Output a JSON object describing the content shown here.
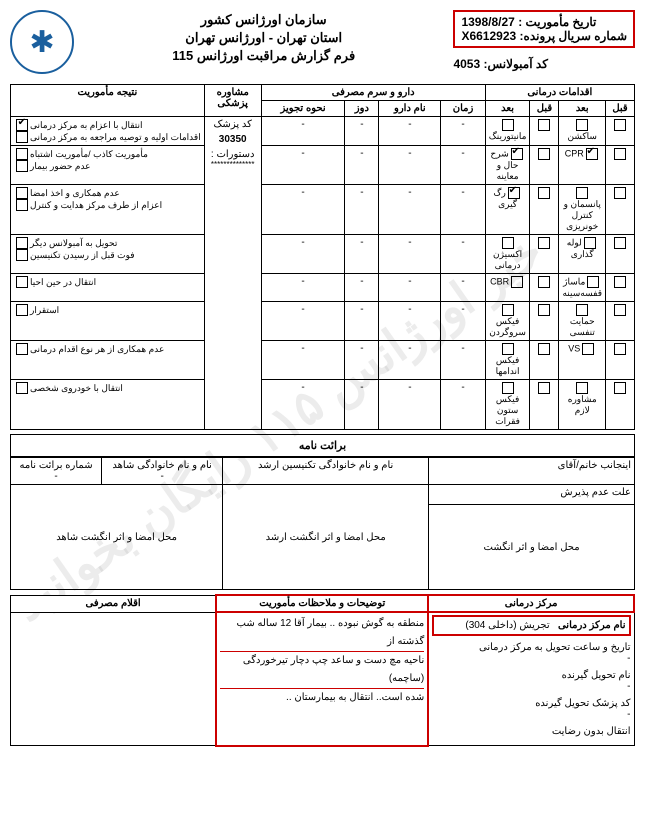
{
  "header": {
    "org": "سازمان اورژانس کشور",
    "region": "استان تهران - اورژانس تهران",
    "form_title": "فرم گزارش مراقبت اورژانس 115",
    "mission_date_label": "تاریخ مأموریت :",
    "mission_date": "1398/8/27",
    "serial_label": "شماره سریال پرونده:",
    "serial": "X6612923",
    "ambulance_label": "کد آمبولانس:",
    "ambulance_code": "4053"
  },
  "sections": {
    "treatments": "اقدامات درمانی",
    "drugs": "دارو و سرم مصرفی",
    "consult": "مشاوره پزشکی",
    "results": "نتیجه مأموریت",
    "before": "قبل",
    "after": "بعد",
    "time": "زمان",
    "drug_name": "نام دارو",
    "dose": "دوز",
    "method": "نحوه تجویز",
    "doc_code_label": "کد پزشک",
    "doc_code": "30350",
    "orders_label": "دستورات :",
    "orders_sep": "**************"
  },
  "treat_left": [
    "ساکشن",
    "CPR",
    "پانسمان و کنترل خونریزی",
    "لوله گذاری",
    "ماساژ قفسه‌سینه",
    "حمایت تنفسی",
    "VS",
    "مشاوره لازم"
  ],
  "treat_right": [
    "مانیتورینگ",
    "شرح حال و معاینه",
    "رگ گیری",
    "اکسیژن درمانی",
    "CBR",
    "فیکس سروگردن",
    "فیکس اندامها",
    "فیکس ستون فقرات"
  ],
  "treat_left_checks": [
    [
      false,
      false
    ],
    [
      false,
      true
    ],
    [
      false,
      false
    ],
    [
      false,
      false
    ],
    [
      false,
      false
    ],
    [
      false,
      false
    ],
    [
      false,
      false
    ],
    [
      false,
      false
    ]
  ],
  "treat_right_checks": [
    [
      false,
      false
    ],
    [
      false,
      true
    ],
    [
      false,
      true
    ],
    [
      false,
      false
    ],
    [
      false,
      false
    ],
    [
      false,
      false
    ],
    [
      false,
      false
    ],
    [
      false,
      false
    ]
  ],
  "results_items": [
    "انتقال با اعزام به مرکز درمانی",
    "اقدامات اولیه و توصیه مراجعه به مرکز درمانی",
    "مأموریت کاذب /مأموریت اشتباه",
    "عدم حضور بیمار",
    "عدم همکاری و اخذ امضا",
    "اعزام از طرف مرکز هدایت و کنترل",
    "تحویل به آمبولانس دیگر",
    "فوت قبل از رسیدن تکنیسین",
    "انتقال در حین احیا",
    "استقرار",
    "عدم همکاری از هر نوع اقدام درمانی",
    "انتقال با خودروی شخصی"
  ],
  "results_checks": [
    true,
    false,
    false,
    false,
    false,
    false,
    false,
    false,
    false,
    false,
    false,
    false
  ],
  "consent": {
    "title": "برائت نامه",
    "addr": "اینجانب خانم/آقای",
    "refusal": "علت عدم پذیرش",
    "sig1": "محل امضا و اثر انگشت",
    "tech": "نام و نام خانوادگی تکنیسین ارشد",
    "sig2": "محل امضا و اثر انگشت ارشد",
    "witness": "نام و نام خانوادگی شاهد",
    "sig3": "محل امضا و اثر انگشت شاهد",
    "num": "شماره برائت نامه"
  },
  "bottom": {
    "center_hdr": "مرکز درمانی",
    "center_name_label": "نام مرکز درمانی",
    "center_name": "تجریش (داخلی 304)",
    "deliver_time": "تاریخ و ساعت تحویل به مرکز درمانی",
    "recv_name": "نام تحویل گیرنده",
    "recv_doc": "کد پزشک تحویل گیرنده",
    "no_decline": "انتقال بدون رضایت",
    "notes_hdr": "توضیحات و ملاحظات مأموریت",
    "notes_l1": "منطقه به گوش نبوده .. بیمار آقا 12 ساله  شب گذشته از",
    "notes_l2": "ناحیه مچ دست و ساعد چپ  دچار تیرخوردگی (ساچمه)",
    "notes_l3": "شده است.. انتقال به بیمارستان ..",
    "items_hdr": "اقلام مصرفی"
  }
}
